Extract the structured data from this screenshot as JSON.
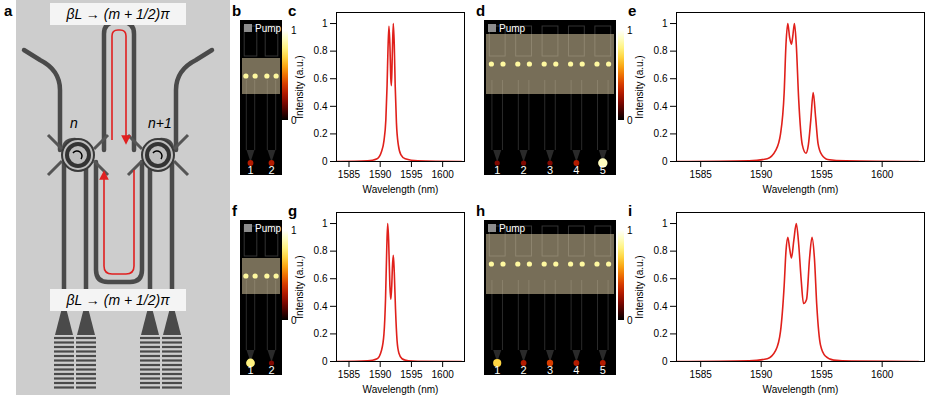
{
  "schematic": {
    "panel": "a",
    "phase_label_top": "βL → (m + 1/2)π",
    "phase_label_bottom": "βL → (m + 1/2)π",
    "ring_labels": [
      "n",
      "n+1"
    ]
  },
  "images": [
    {
      "panel": "b",
      "pump_label": "Pump",
      "colorbar_ticks": [
        1,
        0
      ],
      "ports": [
        "1",
        "2"
      ],
      "output_intensity": [
        0.3,
        0.3
      ]
    },
    {
      "panel": "d",
      "pump_label": "Pump",
      "colorbar_ticks": [
        1,
        0
      ],
      "ports": [
        "1",
        "2",
        "3",
        "4",
        "5"
      ],
      "output_intensity": [
        0.2,
        0.2,
        0.2,
        0.3,
        0.9
      ]
    },
    {
      "panel": "f",
      "pump_label": "Pump",
      "colorbar_ticks": [
        1,
        0
      ],
      "ports": [
        "1",
        "2"
      ],
      "output_intensity": [
        0.8,
        0.2
      ]
    },
    {
      "panel": "h",
      "pump_label": "Pump",
      "colorbar_ticks": [
        1,
        0
      ],
      "ports": [
        "1",
        "2",
        "3",
        "4",
        "5"
      ],
      "output_intensity": [
        0.7,
        0.3,
        0.4,
        0.3,
        0.3
      ]
    }
  ],
  "chart_data": [
    {
      "panel": "c",
      "type": "line",
      "x_label": "Wavelength (nm)",
      "y_label": "Intensity (a.u.)",
      "color": "#e0201b",
      "xlim": [
        1583,
        1603.5
      ],
      "xticks": [
        1585,
        1590,
        1595,
        1600
      ],
      "ylim": [
        0,
        1.08
      ],
      "yticks": [
        0,
        0.2,
        0.4,
        0.6,
        0.8,
        1
      ],
      "x": [
        1583,
        1588,
        1589.5,
        1590.2,
        1590.6,
        1590.9,
        1591.1,
        1591.25,
        1591.4,
        1591.55,
        1591.7,
        1591.8,
        1591.95,
        1592.1,
        1592.25,
        1592.4,
        1592.6,
        1592.9,
        1593.3,
        1594,
        1596,
        1603
      ],
      "values": [
        0,
        0.005,
        0.02,
        0.07,
        0.15,
        0.3,
        0.55,
        0.82,
        0.98,
        0.85,
        0.6,
        0.55,
        0.8,
        1.0,
        0.85,
        0.55,
        0.28,
        0.12,
        0.05,
        0.02,
        0.005,
        0
      ]
    },
    {
      "panel": "e",
      "type": "line",
      "x_label": "Wavelength (nm)",
      "y_label": "Intensity (a.u.)",
      "color": "#e0201b",
      "xlim": [
        1583,
        1603.5
      ],
      "xticks": [
        1585,
        1590,
        1595,
        1600
      ],
      "ylim": [
        0,
        1.08
      ],
      "yticks": [
        0,
        0.2,
        0.4,
        0.6,
        0.8,
        1
      ],
      "x": [
        1583,
        1589,
        1590.5,
        1591.2,
        1591.6,
        1591.9,
        1592.05,
        1592.2,
        1592.35,
        1592.5,
        1592.6,
        1592.75,
        1592.9,
        1593.1,
        1593.4,
        1593.7,
        1593.9,
        1594.1,
        1594.3,
        1594.5,
        1594.7,
        1595,
        1595.5,
        1597,
        1603
      ],
      "values": [
        0,
        0.005,
        0.02,
        0.08,
        0.2,
        0.5,
        0.85,
        1.0,
        0.9,
        0.85,
        0.9,
        1.0,
        0.85,
        0.45,
        0.12,
        0.06,
        0.12,
        0.3,
        0.5,
        0.32,
        0.13,
        0.05,
        0.015,
        0.005,
        0
      ]
    },
    {
      "panel": "g",
      "type": "line",
      "x_label": "Wavelength (nm)",
      "y_label": "Intensity (a.u.)",
      "color": "#e0201b",
      "xlim": [
        1583,
        1603.5
      ],
      "xticks": [
        1585,
        1590,
        1595,
        1600
      ],
      "ylim": [
        0,
        1.08
      ],
      "yticks": [
        0,
        0.2,
        0.4,
        0.6,
        0.8,
        1
      ],
      "x": [
        1583,
        1588,
        1589.5,
        1590.2,
        1590.6,
        1590.85,
        1591.05,
        1591.2,
        1591.35,
        1591.55,
        1591.7,
        1591.85,
        1591.95,
        1592.1,
        1592.25,
        1592.45,
        1592.7,
        1593,
        1593.5,
        1594.5,
        1596,
        1603
      ],
      "values": [
        0,
        0.005,
        0.02,
        0.08,
        0.2,
        0.45,
        0.82,
        1.0,
        0.88,
        0.55,
        0.45,
        0.55,
        0.68,
        0.77,
        0.65,
        0.38,
        0.15,
        0.06,
        0.02,
        0.005,
        0.002,
        0
      ]
    },
    {
      "panel": "i",
      "type": "line",
      "x_label": "Wavelength (nm)",
      "y_label": "Intensity (a.u.)",
      "color": "#e0201b",
      "xlim": [
        1583,
        1603.5
      ],
      "xticks": [
        1585,
        1590,
        1595,
        1600
      ],
      "ylim": [
        0,
        1.08
      ],
      "yticks": [
        0,
        0.2,
        0.4,
        0.6,
        0.8,
        1
      ],
      "x": [
        1583,
        1589,
        1590.5,
        1591.2,
        1591.6,
        1591.9,
        1592.05,
        1592.2,
        1592.35,
        1592.5,
        1592.7,
        1592.9,
        1593.1,
        1593.3,
        1593.5,
        1593.75,
        1594,
        1594.2,
        1594.4,
        1594.6,
        1594.9,
        1595.3,
        1596,
        1597.5,
        1603
      ],
      "values": [
        0,
        0.005,
        0.02,
        0.08,
        0.22,
        0.55,
        0.8,
        0.9,
        0.82,
        0.75,
        0.88,
        1.0,
        0.85,
        0.6,
        0.42,
        0.45,
        0.75,
        0.9,
        0.75,
        0.4,
        0.12,
        0.04,
        0.01,
        0.003,
        0
      ]
    }
  ]
}
